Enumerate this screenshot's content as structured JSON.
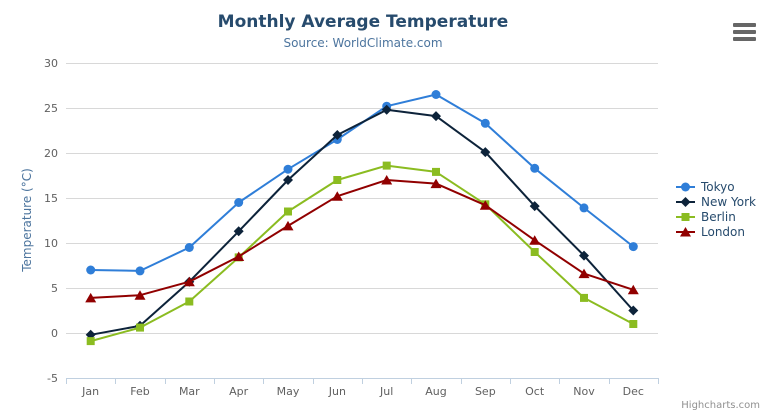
{
  "chart": {
    "title": "Monthly Average Temperature",
    "subtitle": "Source: WorldClimate.com",
    "y_axis_title": "Temperature (°C)",
    "credits": "Highcharts.com",
    "export_menu_icon": "hamburger-icon"
  },
  "colors": {
    "title": "#274b6d",
    "subtitle": "#4d759e",
    "axis_title": "#4d759e",
    "axis_label": "#606060",
    "grid": "#d8d8d8",
    "axis_line": "#c0d0e0",
    "legend_text": "#274b6d",
    "credits": "#909090",
    "export_icon": "#666666",
    "tokyo": "#2f7ed8",
    "new_york": "#0d233a",
    "berlin": "#8bbc21",
    "london": "#910000"
  },
  "chart_data": {
    "type": "line",
    "title": "Monthly Average Temperature",
    "subtitle": "Source: WorldClimate.com",
    "xlabel": "",
    "ylabel": "Temperature (°C)",
    "ylim": [
      -5,
      30
    ],
    "y_ticks": [
      -5,
      0,
      5,
      10,
      15,
      20,
      25,
      30
    ],
    "grid": true,
    "legend_position": "right",
    "categories": [
      "Jan",
      "Feb",
      "Mar",
      "Apr",
      "May",
      "Jun",
      "Jul",
      "Aug",
      "Sep",
      "Oct",
      "Nov",
      "Dec"
    ],
    "series": [
      {
        "name": "Tokyo",
        "color": "#2f7ed8",
        "marker": "circle",
        "values": [
          7.0,
          6.9,
          9.5,
          14.5,
          18.2,
          21.5,
          25.2,
          26.5,
          23.3,
          18.3,
          13.9,
          9.6
        ]
      },
      {
        "name": "New York",
        "color": "#0d233a",
        "marker": "diamond",
        "values": [
          -0.2,
          0.8,
          5.7,
          11.3,
          17.0,
          22.0,
          24.8,
          24.1,
          20.1,
          14.1,
          8.6,
          2.5
        ]
      },
      {
        "name": "Berlin",
        "color": "#8bbc21",
        "marker": "square",
        "values": [
          -0.9,
          0.6,
          3.5,
          8.4,
          13.5,
          17.0,
          18.6,
          17.9,
          14.3,
          9.0,
          3.9,
          1.0
        ]
      },
      {
        "name": "London",
        "color": "#910000",
        "marker": "triangle",
        "values": [
          3.9,
          4.2,
          5.7,
          8.5,
          11.9,
          15.2,
          17.0,
          16.6,
          14.2,
          10.3,
          6.6,
          4.8
        ]
      }
    ]
  }
}
